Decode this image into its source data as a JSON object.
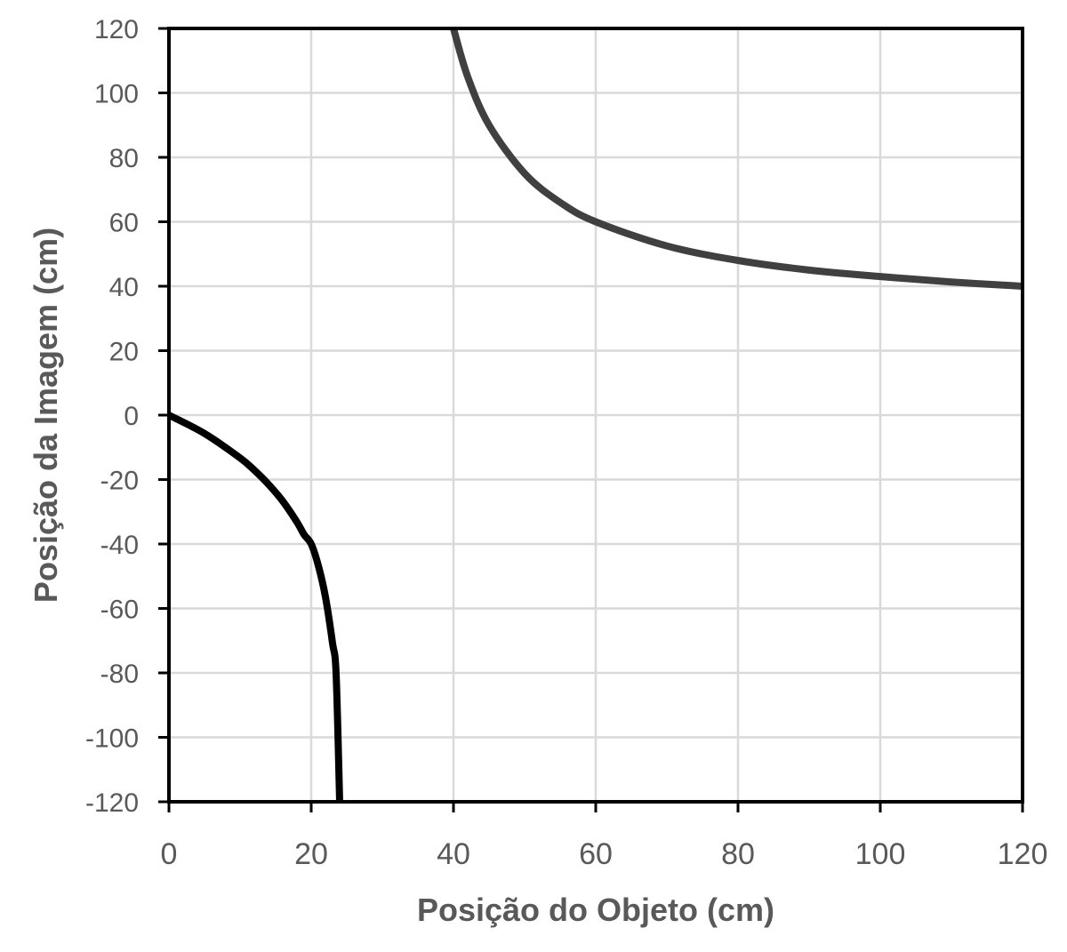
{
  "chart_data": {
    "type": "line",
    "title": "",
    "xlabel": "Posição do Objeto (cm)",
    "ylabel": "Posição da Imagem (cm)",
    "xlim": [
      0,
      120
    ],
    "ylim": [
      -120,
      120
    ],
    "x_ticks": [
      "0",
      "20",
      "40",
      "60",
      "80",
      "100",
      "120"
    ],
    "y_ticks": [
      "120",
      "100",
      "80",
      "60",
      "40",
      "20",
      "0",
      "-20",
      "-40",
      "-60",
      "-80",
      "-100",
      "-120"
    ],
    "grid": true,
    "legend": "none",
    "series": [
      {
        "color": "#000000",
        "points": [
          [
            0,
            0
          ],
          [
            5,
            -5.7
          ],
          [
            10,
            -13.3
          ],
          [
            12,
            -17.1
          ],
          [
            14,
            -21.5
          ],
          [
            16,
            -26.7
          ],
          [
            18,
            -33.2
          ],
          [
            19,
            -37.1
          ],
          [
            20,
            -40
          ],
          [
            21,
            -46.7
          ],
          [
            22,
            -56.4
          ],
          [
            23,
            -70.8
          ],
          [
            23.5,
            -80.3
          ],
          [
            24,
            -120
          ]
        ]
      },
      {
        "color": "#404040",
        "points": [
          [
            40,
            120
          ],
          [
            42,
            105
          ],
          [
            45,
            90
          ],
          [
            50,
            75
          ],
          [
            55,
            66
          ],
          [
            60,
            60
          ],
          [
            70,
            52.5
          ],
          [
            80,
            48
          ],
          [
            90,
            45
          ],
          [
            100,
            43
          ],
          [
            110,
            41.3
          ],
          [
            120,
            40
          ]
        ]
      }
    ]
  }
}
